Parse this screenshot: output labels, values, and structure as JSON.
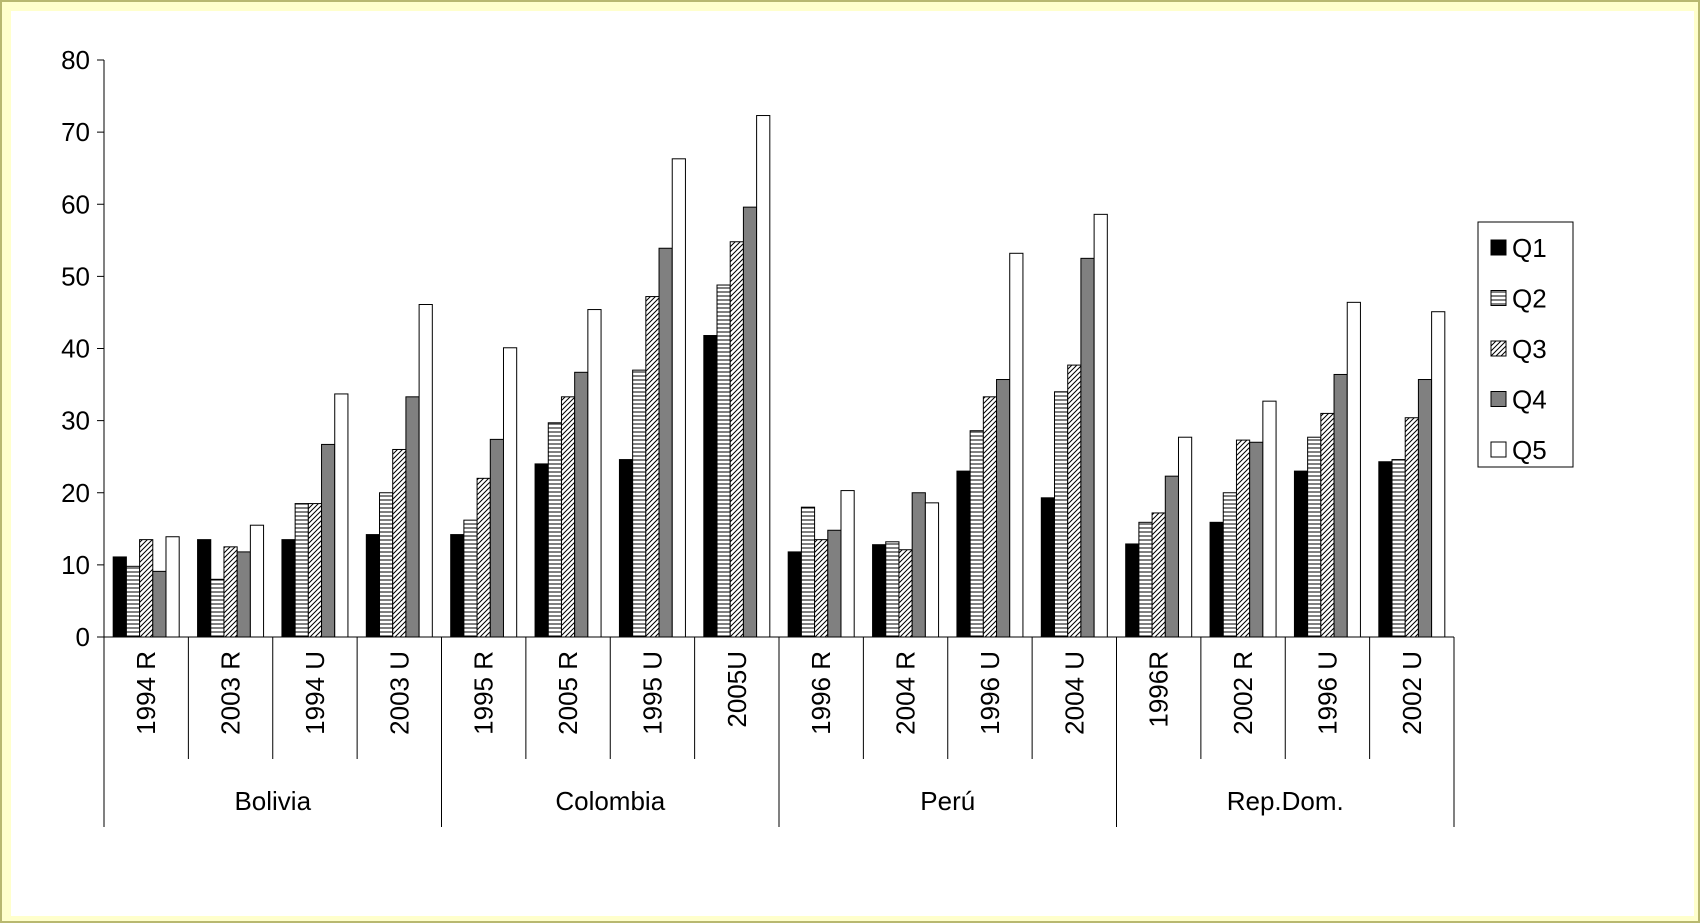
{
  "chart_data": {
    "type": "bar",
    "title": "",
    "xlabel": "",
    "ylabel": "",
    "ylim": [
      0,
      80
    ],
    "yticks": [
      "0",
      "10",
      "20",
      "30",
      "40",
      "50",
      "60",
      "70",
      "80"
    ],
    "grid": false,
    "legend_position": "right",
    "groups": [
      {
        "name": "Bolivia",
        "categories": [
          "1994 R",
          "2003 R",
          "1994 U",
          "2003 U"
        ]
      },
      {
        "name": "Colombia",
        "categories": [
          "1995 R",
          "2005 R",
          "1995 U",
          "2005U"
        ]
      },
      {
        "name": "Perú",
        "categories": [
          "1996 R",
          "2004 R",
          "1996 U",
          "2004 U"
        ]
      },
      {
        "name": "Rep.Dom.",
        "categories": [
          "1996R",
          "2002 R",
          "1996 U",
          "2002 U"
        ]
      }
    ],
    "categories": [
      "1994 R",
      "2003 R",
      "1994 U",
      "2003 U",
      "1995 R",
      "2005 R",
      "1995 U",
      "2005U",
      "1996 R",
      "2004 R",
      "1996 U",
      "2004 U",
      "1996R",
      "2002 R",
      "1996 U",
      "2002 U"
    ],
    "series": [
      {
        "name": "Q1",
        "pattern": "solid-black",
        "values": [
          11.1,
          13.5,
          13.5,
          14.2,
          14.2,
          24.0,
          24.6,
          41.8,
          11.8,
          12.8,
          23.0,
          19.3,
          12.9,
          15.9,
          23.0,
          24.3
        ]
      },
      {
        "name": "Q2",
        "pattern": "horizontal-lines",
        "values": [
          9.8,
          8.0,
          18.5,
          20.0,
          16.2,
          29.7,
          37.0,
          48.8,
          18.0,
          13.2,
          28.6,
          34.0,
          15.9,
          20.0,
          27.7,
          24.6
        ]
      },
      {
        "name": "Q3",
        "pattern": "diagonal-lines",
        "values": [
          13.5,
          12.5,
          18.5,
          26.0,
          22.0,
          33.3,
          47.2,
          54.8,
          13.5,
          12.1,
          33.3,
          37.7,
          17.2,
          27.3,
          31.0,
          30.4
        ]
      },
      {
        "name": "Q4",
        "pattern": "solid-gray",
        "values": [
          9.1,
          11.8,
          26.7,
          33.3,
          27.4,
          36.7,
          53.9,
          59.6,
          14.8,
          20.0,
          35.7,
          52.5,
          22.3,
          27.0,
          36.4,
          35.7
        ]
      },
      {
        "name": "Q5",
        "pattern": "solid-white",
        "values": [
          13.9,
          15.5,
          33.7,
          46.1,
          40.1,
          45.4,
          66.3,
          72.3,
          20.3,
          18.6,
          53.2,
          58.6,
          27.7,
          32.7,
          46.4,
          45.1
        ]
      }
    ],
    "colors": {
      "Q1": "#000000",
      "Q2": "#ffffff",
      "Q3": "#ffffff",
      "Q4": "#808080",
      "Q5": "#ffffff"
    }
  }
}
